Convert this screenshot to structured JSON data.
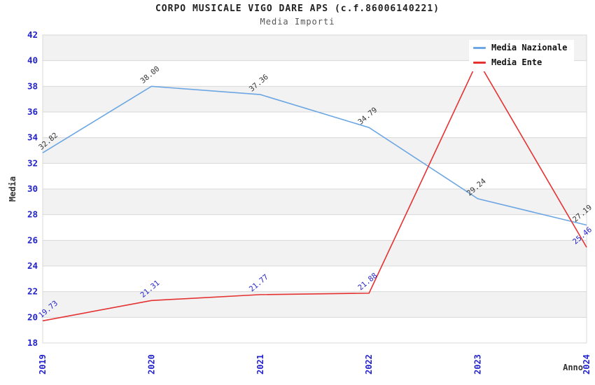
{
  "header": {
    "title": "CORPO MUSICALE VIGO DARE APS (c.f.86006140221)",
    "subtitle": "Media Importi"
  },
  "legend": {
    "items": [
      {
        "label": "Media Nazionale",
        "color": "#6CA6E3"
      },
      {
        "label": "Media Ente",
        "color": "#E53231"
      }
    ]
  },
  "axes": {
    "y_label": "Media",
    "x_label": "Anno",
    "y_ticks": [
      18,
      20,
      22,
      24,
      26,
      28,
      30,
      32,
      34,
      36,
      38,
      40,
      42
    ],
    "x_ticks": [
      "2019",
      "2020",
      "2021",
      "2022",
      "2023",
      "2024"
    ],
    "tick_color": "#2222CC"
  },
  "chart_data": {
    "type": "line",
    "title": "Media Importi",
    "x": [
      2019,
      2020,
      2021,
      2022,
      2023,
      2024
    ],
    "xlabel": "Anno",
    "ylabel": "Media",
    "ylim": [
      18,
      42
    ],
    "grid": true,
    "band_colors": [
      "#F2F2F2",
      "#FFFFFF"
    ],
    "legend_position": "top-right",
    "series": [
      {
        "name": "Media Nazionale",
        "color": "#6CA6E3",
        "label_color": "#333333",
        "values": [
          32.82,
          38.0,
          37.36,
          34.79,
          29.24,
          27.19
        ],
        "labels": [
          "32.82",
          "38.00",
          "37.36",
          "34.79",
          "29.24",
          "27.19"
        ]
      },
      {
        "name": "Media Ente",
        "color": "#E53231",
        "label_color": "#2222CC",
        "values": [
          19.73,
          21.31,
          21.77,
          21.88,
          40.0,
          25.46
        ],
        "labels": [
          "19.73",
          "21.31",
          "21.77",
          "21.88",
          "",
          "25.46"
        ]
      }
    ]
  },
  "colors": {
    "band_gray": "#F2F2F2",
    "frame": "#D8D8D8",
    "title_text": "#222222",
    "subtitle_text": "#555555",
    "axis_title_text": "#333333"
  }
}
